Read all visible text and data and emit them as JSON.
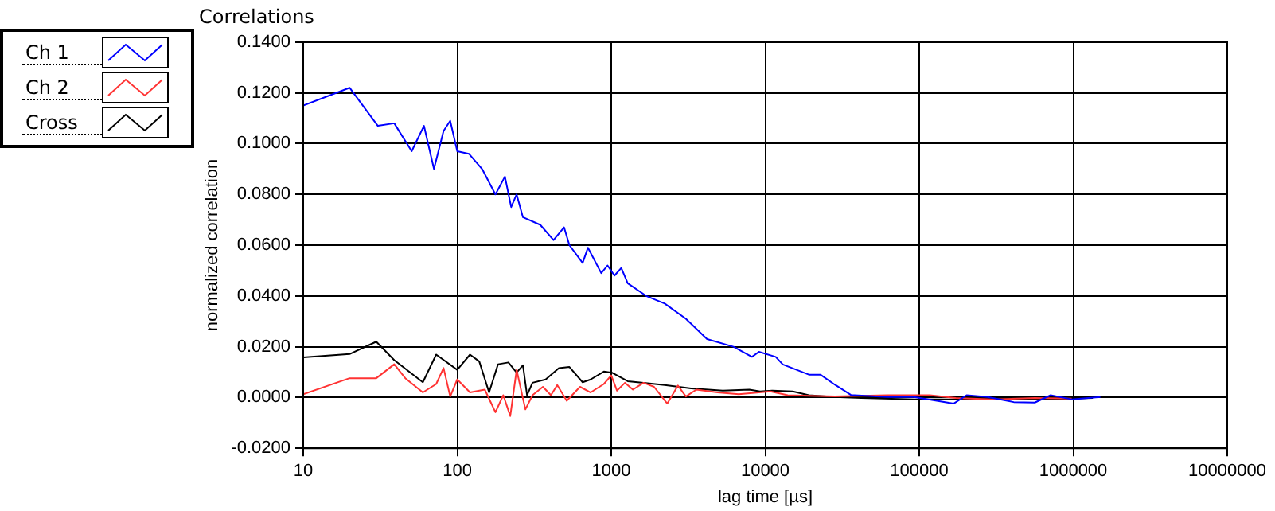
{
  "chart_data": {
    "type": "line",
    "title": "Correlations",
    "xlabel": "lag time [µs]",
    "ylabel": "normalized correlation",
    "xlim": [
      10,
      10000000
    ],
    "xticks": [
      10,
      100,
      1000,
      10000,
      100000,
      1000000,
      10000000
    ],
    "ylim": [
      -0.02,
      0.14
    ],
    "yticks": [
      {
        "value": -0.02,
        "label": "-0.0200"
      },
      {
        "value": 0,
        "label": "0.0000"
      },
      {
        "value": 0.02,
        "label": "0.0200"
      },
      {
        "value": 0.04,
        "label": "0.0400"
      },
      {
        "value": 0.06,
        "label": "0.0600"
      },
      {
        "value": 0.08,
        "label": "0.0800"
      },
      {
        "value": 0.1,
        "label": "0.1000"
      },
      {
        "value": 0.12,
        "label": "0.1200"
      },
      {
        "value": 0.14,
        "label": "0.1400"
      }
    ],
    "log": "x",
    "grid": true,
    "legend": "top left",
    "marker": "none",
    "line_style": "solid",
    "series": [
      {
        "name": "Ch 1",
        "color": "#0000ff",
        "x": [
          10,
          20,
          30.5,
          39,
          50.6,
          60.8,
          70.6,
          81.5,
          90,
          100,
          119,
          145,
          177,
          204,
          224,
          243,
          267,
          346,
          422,
          494,
          535,
          652,
          706,
          861,
          946,
          1050,
          1162,
          1279,
          1687,
          2225,
          3053,
          4190,
          6220,
          8200,
          9100,
          11700,
          13000,
          19200,
          22800,
          28400,
          36000,
          62000,
          92500,
          167000,
          203000,
          278000,
          411000,
          563000,
          713000,
          977000,
          1500000
        ],
        "values": [
          0.115,
          0.122,
          0.107,
          0.108,
          0.097,
          0.107,
          0.09,
          0.105,
          0.109,
          0.097,
          0.096,
          0.09,
          0.08,
          0.087,
          0.075,
          0.08,
          0.071,
          0.068,
          0.062,
          0.067,
          0.06,
          0.053,
          0.059,
          0.049,
          0.052,
          0.048,
          0.051,
          0.045,
          0.04,
          0.037,
          0.031,
          0.023,
          0.02,
          0.016,
          0.018,
          0.016,
          0.013,
          0.009,
          0.009,
          0.005,
          0.001,
          0.0002,
          0.0002,
          -0.0024,
          0.0009,
          0.0002,
          -0.0018,
          -0.002,
          0.0009,
          -0.0007,
          0.0002
        ]
      },
      {
        "name": "Ch 2",
        "color": "#ff3333",
        "x": [
          10,
          20,
          29.8,
          39,
          46,
          59.8,
          73,
          81.5,
          90,
          100,
          121,
          151,
          177,
          199,
          221,
          243,
          277,
          308,
          360,
          406,
          446,
          514,
          627,
          735,
          895,
          1000,
          1090,
          1228,
          1383,
          1622,
          1897,
          2312,
          2710,
          3053,
          3570,
          4910,
          6730,
          10800,
          14000,
          28400,
          62000,
          117000,
          173000,
          300000,
          563000,
          977000
        ],
        "values": [
          0.0013,
          0.0076,
          0.0076,
          0.0131,
          0.0076,
          0.002,
          0.0053,
          0.0116,
          0.0004,
          0.0071,
          0.002,
          0.0031,
          -0.0058,
          0.0009,
          -0.0073,
          0.0109,
          -0.0047,
          0.0009,
          0.0042,
          0.0009,
          0.0049,
          -0.0013,
          0.0042,
          0.002,
          0.0053,
          0.0087,
          0.0027,
          0.0058,
          0.0031,
          0.0058,
          0.0042,
          -0.0024,
          0.0047,
          0.0004,
          0.0031,
          0.002,
          0.0013,
          0.0024,
          0.0009,
          0.0004,
          0.0009,
          0.0009,
          -0.0002,
          -0.0007,
          -0.0002,
          -0.0004
        ]
      },
      {
        "name": "Cross",
        "color": "#000000",
        "x": [
          10,
          20,
          29.8,
          39,
          59.8,
          73,
          100,
          121,
          139,
          161,
          184,
          215,
          243,
          267,
          284,
          308,
          375,
          457,
          535,
          652,
          735,
          895,
          1010,
          1279,
          1622,
          2225,
          3300,
          5300,
          7890,
          9240,
          11100,
          15100,
          19200,
          28400,
          42100,
          92500,
          173000,
          278000,
          521000,
          977000,
          1340000
        ],
        "values": [
          0.0158,
          0.0171,
          0.022,
          0.0147,
          0.006,
          0.0169,
          0.0109,
          0.0169,
          0.0142,
          0.002,
          0.0131,
          0.0138,
          0.0098,
          0.0127,
          0.0009,
          0.0058,
          0.0071,
          0.0116,
          0.012,
          0.006,
          0.0071,
          0.0102,
          0.0098,
          0.0064,
          0.0058,
          0.0049,
          0.0036,
          0.0027,
          0.0031,
          0.0024,
          0.0027,
          0.0024,
          0.0009,
          0.0002,
          -0.0002,
          -0.0007,
          -0.0007,
          -0.0002,
          -0.0007,
          -0.0004,
          -0.0002
        ]
      }
    ]
  }
}
